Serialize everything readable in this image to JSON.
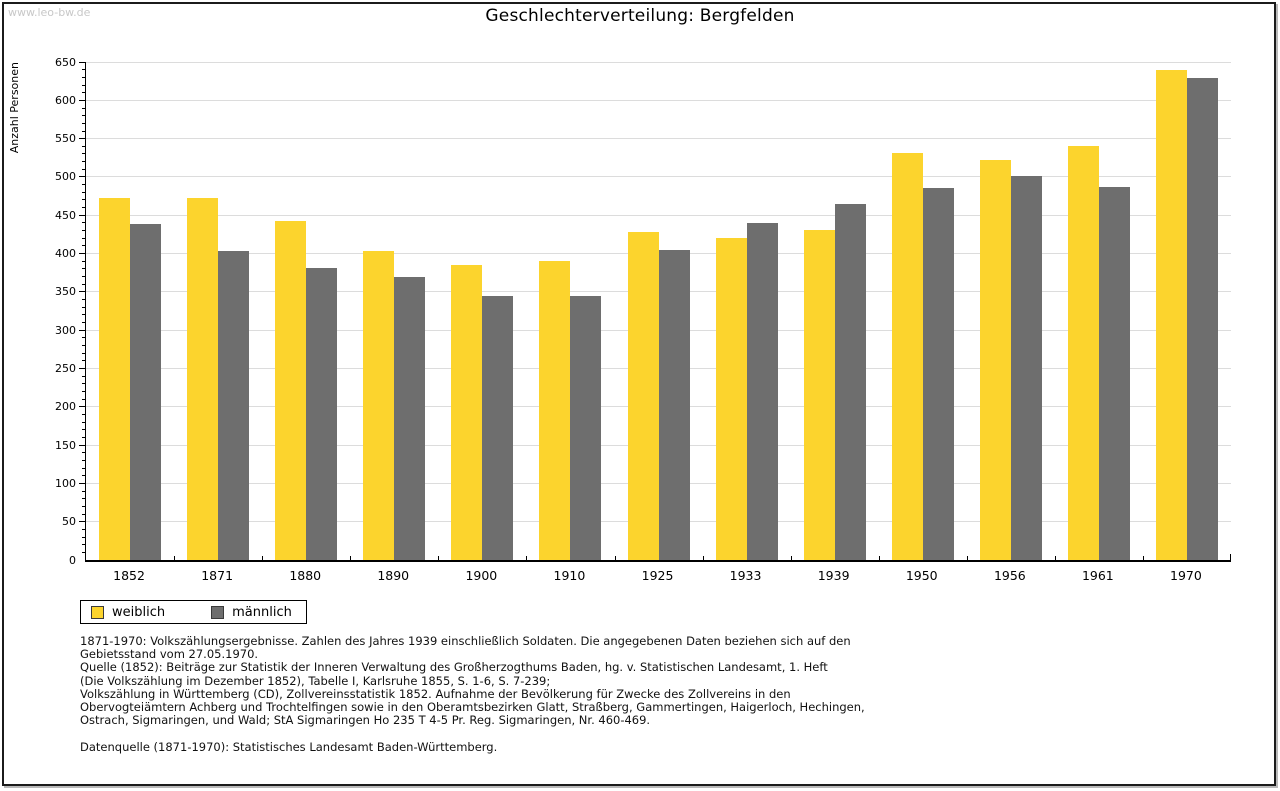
{
  "watermark": "www.leo-bw.de",
  "title": "Geschlechterverteilung: Bergfelden",
  "chart_data": {
    "type": "bar",
    "title": "Geschlechterverteilung: Bergfelden",
    "xlabel": "",
    "ylabel": "Anzahl Personen",
    "ylim": [
      0,
      650
    ],
    "ytick_major": 50,
    "ytick_minor": 10,
    "grid": true,
    "legend_position": "bottom-left",
    "categories": [
      "1852",
      "1871",
      "1880",
      "1890",
      "1900",
      "1910",
      "1925",
      "1933",
      "1939",
      "1950",
      "1956",
      "1961",
      "1970"
    ],
    "series": [
      {
        "name": "weiblich",
        "color": "#FCD42D",
        "values": [
          473,
          473,
          442,
          404,
          385,
          390,
          428,
          420,
          431,
          531,
          522,
          540,
          640
        ]
      },
      {
        "name": "männlich",
        "color": "#6E6E6E",
        "values": [
          438,
          404,
          381,
          369,
          344,
          345,
          405,
          440,
          465,
          485,
          501,
          487,
          629
        ]
      }
    ]
  },
  "footnotes": {
    "lines": [
      "1871-1970: Volkszählungsergebnisse. Zahlen des Jahres 1939 einschließlich Soldaten. Die angegebenen Daten beziehen sich auf den",
      "Gebietsstand vom 27.05.1970.",
      "Quelle (1852): Beiträge zur Statistik der Inneren Verwaltung des Großherzogthums Baden, hg. v. Statistischen Landesamt, 1. Heft",
      "(Die Volkszählung im Dezember 1852), Tabelle I, Karlsruhe 1855, S. 1-6, S. 7-239;",
      "Volkszählung in Württemberg (CD), Zollvereinsstatistik 1852. Aufnahme der Bevölkerung für Zwecke des Zollvereins in den",
      "Obervogteiämtern Achberg und Trochtelfingen sowie in den Oberamtsbezirken Glatt, Straßberg, Gammertingen, Haigerloch, Hechingen,",
      "Ostrach, Sigmaringen, und Wald; StA Sigmaringen Ho 235 T 4-5 Pr. Reg. Sigmaringen, Nr. 460-469.",
      "",
      "Datenquelle (1871-1970): Statistisches Landesamt Baden-Württemberg."
    ]
  }
}
